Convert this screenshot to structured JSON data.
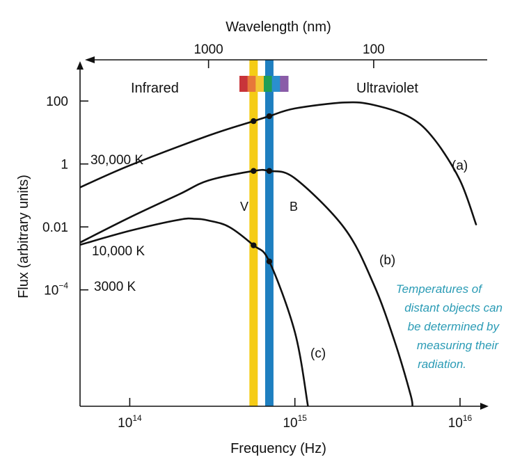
{
  "chart_data": {
    "type": "line",
    "xlabel": "Frequency (Hz)",
    "ylabel": "Flux (arbitrary units)",
    "top_axis_label": "Wavelength (nm)",
    "x_scale": "log",
    "y_scale": "log",
    "xlim": [
      50000000000000,
      13000000000000000
    ],
    "ylim": [
      2e-08,
      1000
    ],
    "x_ticks": [
      {
        "value": 100000000000000,
        "base": "10",
        "exp": "14"
      },
      {
        "value": 1000000000000000,
        "base": "10",
        "exp": "15"
      },
      {
        "value": 10000000000000000,
        "base": "10",
        "exp": "16"
      }
    ],
    "y_ticks": [
      {
        "value": 100,
        "label": "100",
        "sup": ""
      },
      {
        "value": 1,
        "label": "1",
        "sup": ""
      },
      {
        "value": 0.01,
        "label": "0.01",
        "sup": ""
      },
      {
        "value": 0.0001,
        "label": "10",
        "sup": "−4"
      }
    ],
    "top_ticks": [
      {
        "wavelength_nm": 1000,
        "label": "1000"
      },
      {
        "wavelength_nm": 100,
        "label": "100"
      }
    ],
    "region_labels": {
      "left": "Infrared",
      "right": "Ultraviolet"
    },
    "series": [
      {
        "temperature_K": 30000,
        "label": "30,000 K",
        "tag": "(a)",
        "color": "#111111",
        "x": [
          50000000000000,
          100000000000000,
          300000000000000,
          562000000000000,
          700000000000000,
          1000000000000000,
          2000000000000000,
          3000000000000000,
          5000000000000000,
          7000000000000000,
          10000000000000000,
          12500000000000000
        ],
        "y": [
          0.18,
          0.9,
          8,
          23,
          33,
          58,
          90,
          75,
          30,
          6,
          0.3,
          0.012
        ]
      },
      {
        "temperature_K": 10000,
        "label": "10,000 K",
        "tag": "(b)",
        "color": "#111111",
        "x": [
          50000000000000,
          100000000000000,
          200000000000000,
          300000000000000,
          562000000000000,
          700000000000000,
          1000000000000000,
          2000000000000000,
          3000000000000000,
          4000000000000000,
          5000000000000000,
          5150000000000000
        ],
        "y": [
          0.0032,
          0.02,
          0.11,
          0.3,
          0.6,
          0.6,
          0.35,
          0.009,
          0.00015,
          2.5e-06,
          5e-08,
          2e-08
        ]
      },
      {
        "temperature_K": 3000,
        "label": "3000 K",
        "tag": "(c)",
        "color": "#111111",
        "x": [
          50000000000000,
          100000000000000,
          200000000000000,
          250000000000000,
          300000000000000,
          400000000000000,
          562000000000000,
          700000000000000,
          1000000000000000,
          1200000000000000
        ],
        "y": [
          0.0027,
          0.0075,
          0.017,
          0.018,
          0.016,
          0.01,
          0.0026,
          0.0008,
          4.5e-06,
          2e-08
        ]
      }
    ],
    "filter_bands": [
      {
        "name": "V",
        "label": "V",
        "frequency_hz": 562000000000000,
        "color": "#f5cc16"
      },
      {
        "name": "B",
        "label": "B",
        "frequency_hz": 700000000000000,
        "color": "#1e7fc0"
      }
    ],
    "marked_points": [
      {
        "series": "30,000 K",
        "x": 562000000000000,
        "y": 23
      },
      {
        "series": "30,000 K",
        "x": 700000000000000,
        "y": 33
      },
      {
        "series": "10,000 K",
        "x": 562000000000000,
        "y": 0.6
      },
      {
        "series": "10,000 K",
        "x": 700000000000000,
        "y": 0.6
      },
      {
        "series": "3000 K",
        "x": 562000000000000,
        "y": 0.0026
      },
      {
        "series": "3000 K",
        "x": 700000000000000,
        "y": 0.0008
      }
    ],
    "spectrum_colors": [
      "#c8343a",
      "#e7773a",
      "#f3c634",
      "#1f9e56",
      "#2a8fcf",
      "#8a5ca8"
    ],
    "annotation_lines": [
      "Temperatures of",
      "distant objects can",
      "be determined by",
      "measuring their",
      "radiation."
    ],
    "annotation_color": "#2a9bb5"
  }
}
